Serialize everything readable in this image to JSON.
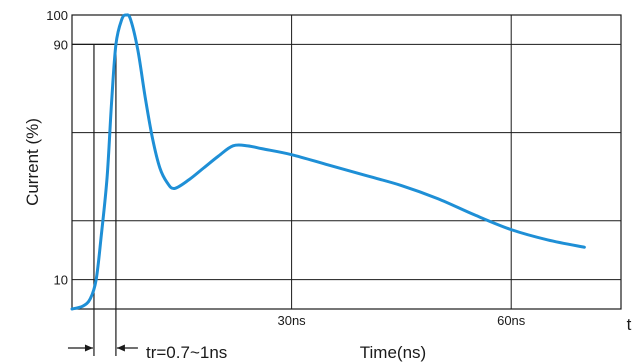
{
  "chart_data": {
    "type": "line",
    "title": "",
    "xlabel": "Time(ns)",
    "ylabel": "Current (%)",
    "x_axis_end_label": "t",
    "xlim": [
      0,
      75
    ],
    "ylim": [
      0,
      100
    ],
    "x_gridlines": [
      30,
      60
    ],
    "y_gridlines": [
      10,
      30,
      60,
      90
    ],
    "x_tick_labels": [
      {
        "x": 30,
        "label": "30ns"
      },
      {
        "x": 60,
        "label": "60ns"
      }
    ],
    "y_tick_labels": [
      {
        "y": 100,
        "label": "100"
      },
      {
        "y": 90,
        "label": "90"
      },
      {
        "y": 10,
        "label": "10"
      }
    ],
    "rise_time_annotation": "tr=0.7~1ns",
    "rise_time_markers_x": [
      3,
      6
    ],
    "series": [
      {
        "color": "#1e8fd6",
        "points": [
          [
            0,
            0
          ],
          [
            1.5,
            1
          ],
          [
            2.5,
            3.5
          ],
          [
            3.3,
            10
          ],
          [
            4,
            25
          ],
          [
            4.8,
            45
          ],
          [
            5.4,
            70
          ],
          [
            6,
            90
          ],
          [
            6.8,
            98.5
          ],
          [
            7.4,
            100
          ],
          [
            8,
            98.5
          ],
          [
            9,
            88
          ],
          [
            10,
            72
          ],
          [
            11,
            58
          ],
          [
            12,
            48
          ],
          [
            13,
            43
          ],
          [
            14,
            41
          ],
          [
            16,
            44
          ],
          [
            18,
            48
          ],
          [
            20,
            52
          ],
          [
            22,
            55.5
          ],
          [
            24,
            55.5
          ],
          [
            26,
            54.5
          ],
          [
            30,
            52.5
          ],
          [
            35,
            49
          ],
          [
            40,
            45.5
          ],
          [
            45,
            42
          ],
          [
            50,
            37.5
          ],
          [
            55,
            32
          ],
          [
            60,
            27
          ],
          [
            65,
            23.5
          ],
          [
            70,
            21
          ]
        ]
      }
    ]
  }
}
